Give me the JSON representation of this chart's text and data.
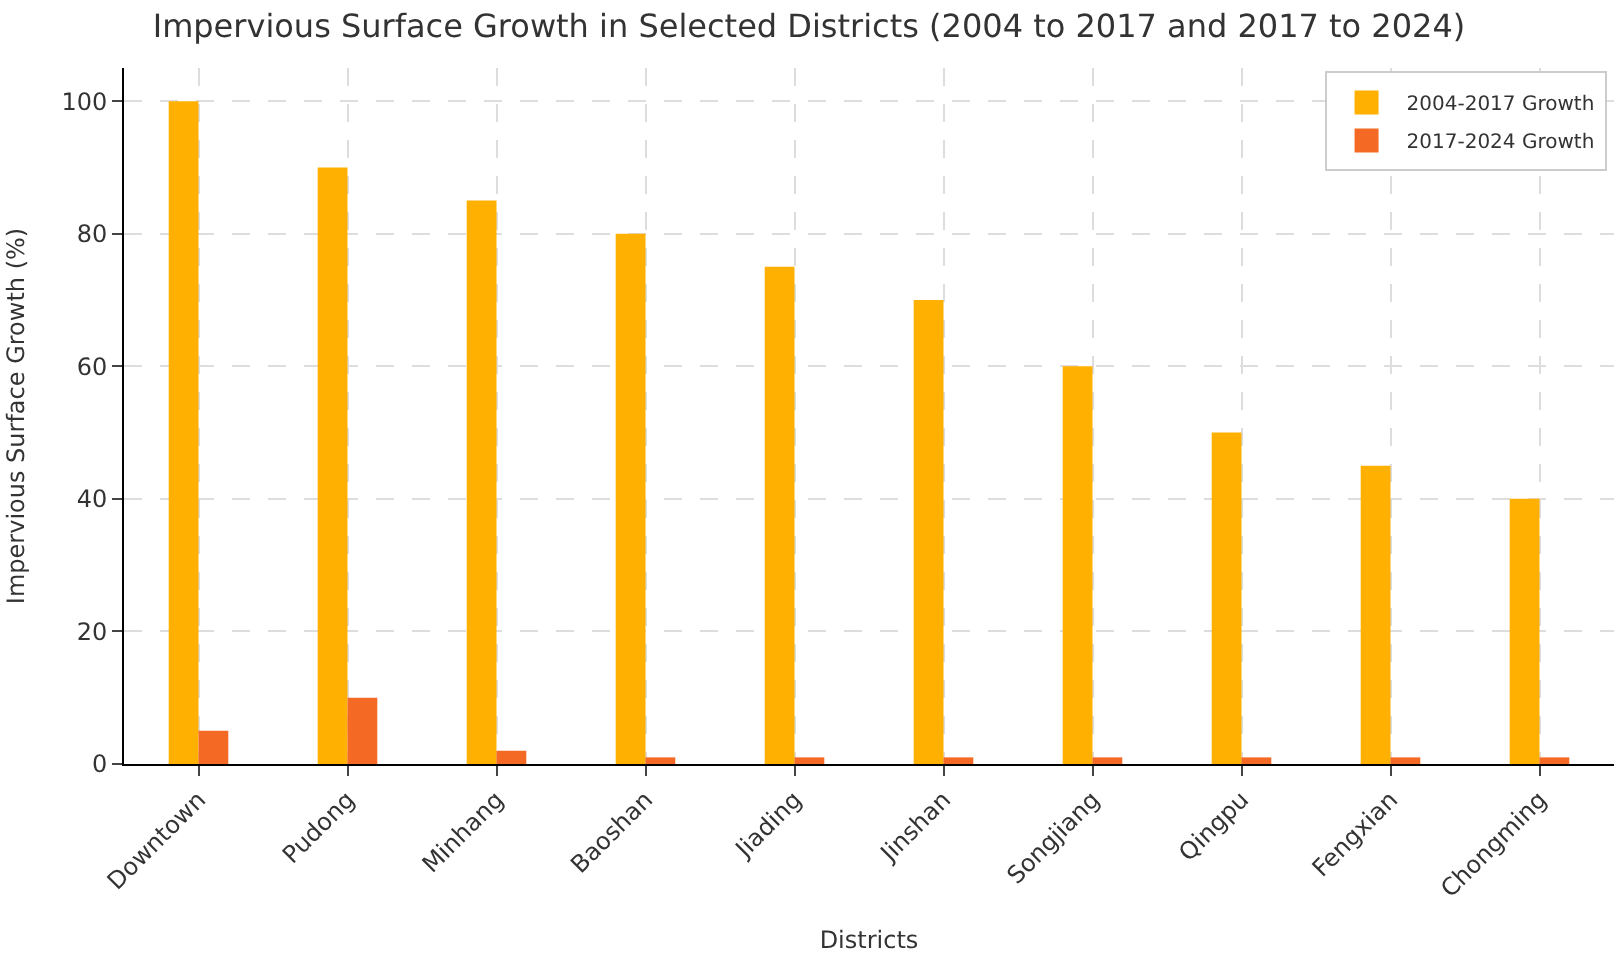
{
  "chart_data": {
    "type": "bar",
    "title": "Impervious Surface Growth in Selected Districts (2004 to 2017 and 2017 to 2024)",
    "xlabel": "Districts",
    "ylabel": "Impervious Surface Growth (%)",
    "categories": [
      "Downtown",
      "Pudong",
      "Minhang",
      "Baoshan",
      "Jiading",
      "Jinshan",
      "Songjiang",
      "Qingpu",
      "Fengxian",
      "Chongming"
    ],
    "series": [
      {
        "name": "2004-2017 Growth",
        "color": "#ffb000",
        "values": [
          100,
          90,
          85,
          80,
          75,
          70,
          60,
          50,
          45,
          40
        ]
      },
      {
        "name": "2017-2024 Growth",
        "color": "#f46a25",
        "values": [
          5,
          10,
          2,
          1,
          1,
          1,
          1,
          1,
          1,
          1
        ]
      }
    ],
    "ylim": [
      0,
      105
    ],
    "yticks": [
      0,
      20,
      40,
      60,
      80,
      100
    ],
    "grid": true,
    "legend": "top right"
  }
}
